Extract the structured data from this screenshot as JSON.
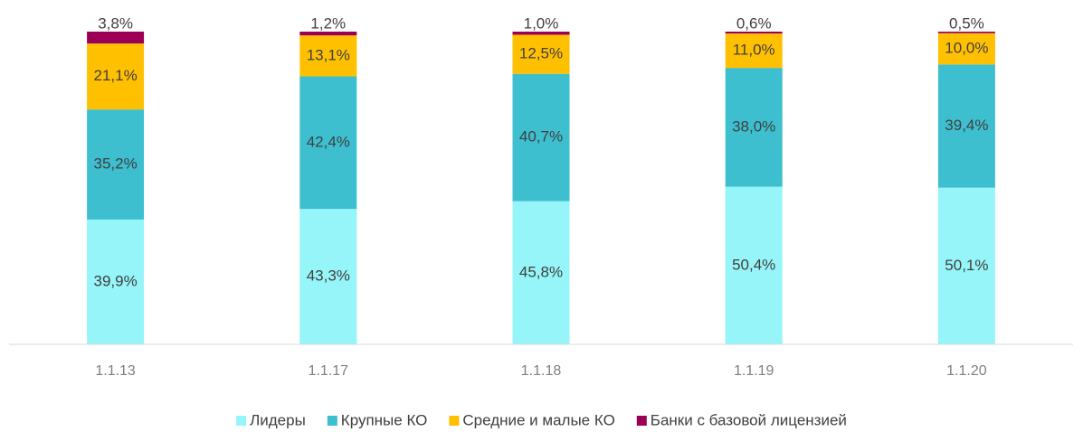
{
  "chart_data": {
    "type": "stacked_bar",
    "categories": [
      "1.1.13",
      "1.1.17",
      "1.1.18",
      "1.1.19",
      "1.1.20"
    ],
    "series": [
      {
        "name": "Лидеры",
        "color": "#95f5f9",
        "values": [
          39.9,
          43.3,
          45.8,
          50.4,
          50.1
        ],
        "value_labels": [
          "39,9%",
          "43,3%",
          "45,8%",
          "50,4%",
          "50,1%"
        ]
      },
      {
        "name": "Крупные КО",
        "color": "#3dbfcf",
        "values": [
          35.2,
          42.4,
          40.7,
          38.0,
          39.4
        ],
        "value_labels": [
          "35,2%",
          "42,4%",
          "40,7%",
          "38,0%",
          "39,4%"
        ]
      },
      {
        "name": "Средние и малые КО",
        "color": "#ffc000",
        "values": [
          21.1,
          13.1,
          12.5,
          11.0,
          10.0
        ],
        "value_labels": [
          "21,1%",
          "13,1%",
          "12,5%",
          "11,0%",
          "10,0%"
        ]
      },
      {
        "name": "Банки с базовой лицензией",
        "color": "#9b0056",
        "values": [
          3.8,
          1.2,
          1.0,
          0.6,
          0.5
        ],
        "value_labels": [
          "3,8%",
          "1,2%",
          "1,0%",
          "0,6%",
          "0,5%"
        ]
      }
    ],
    "ylim": [
      0,
      100
    ],
    "legend": "bottom"
  }
}
